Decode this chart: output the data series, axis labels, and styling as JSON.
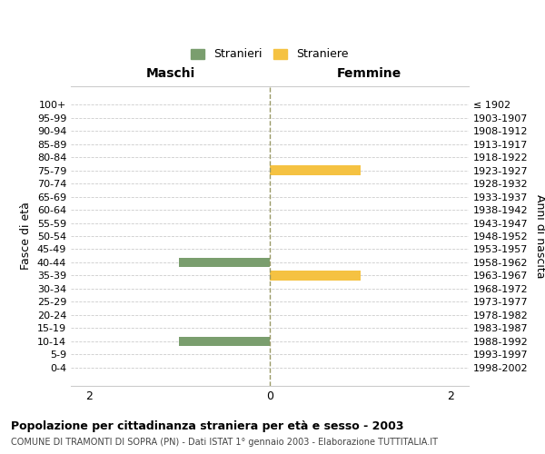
{
  "age_groups": [
    "100+",
    "95-99",
    "90-94",
    "85-89",
    "80-84",
    "75-79",
    "70-74",
    "65-69",
    "60-64",
    "55-59",
    "50-54",
    "45-49",
    "40-44",
    "35-39",
    "30-34",
    "25-29",
    "20-24",
    "15-19",
    "10-14",
    "5-9",
    "0-4"
  ],
  "birth_years": [
    "≤ 1902",
    "1903-1907",
    "1908-1912",
    "1913-1917",
    "1918-1922",
    "1923-1927",
    "1928-1932",
    "1933-1937",
    "1938-1942",
    "1943-1947",
    "1948-1952",
    "1953-1957",
    "1958-1962",
    "1963-1967",
    "1968-1972",
    "1973-1977",
    "1978-1982",
    "1983-1987",
    "1988-1992",
    "1993-1997",
    "1998-2002"
  ],
  "males": [
    0,
    0,
    0,
    0,
    0,
    0,
    0,
    0,
    0,
    0,
    0,
    0,
    1,
    0,
    0,
    0,
    0,
    0,
    1,
    0,
    0
  ],
  "females": [
    0,
    0,
    0,
    0,
    0,
    1,
    0,
    0,
    0,
    0,
    0,
    0,
    0,
    1,
    0,
    0,
    0,
    0,
    0,
    0,
    0
  ],
  "male_color": "#7a9e6e",
  "female_color": "#f5c242",
  "xlim": 2.2,
  "xticks": [
    -2,
    0,
    2
  ],
  "xticklabels": [
    "2",
    "0",
    "2"
  ],
  "title_main": "Popolazione per cittadinanza straniera per età e sesso - 2003",
  "title_sub": "COMUNE DI TRAMONTI DI SOPRA (PN) - Dati ISTAT 1° gennaio 2003 - Elaborazione TUTTITALIA.IT",
  "left_header": "Maschi",
  "right_header": "Femmine",
  "ylabel_left": "Fasce di età",
  "ylabel_right": "Anni di nascita",
  "legend_male": "Stranieri",
  "legend_female": "Straniere",
  "bg_color": "#ffffff",
  "grid_color": "#cccccc",
  "centerline_color": "#999966",
  "bar_height": 0.72
}
